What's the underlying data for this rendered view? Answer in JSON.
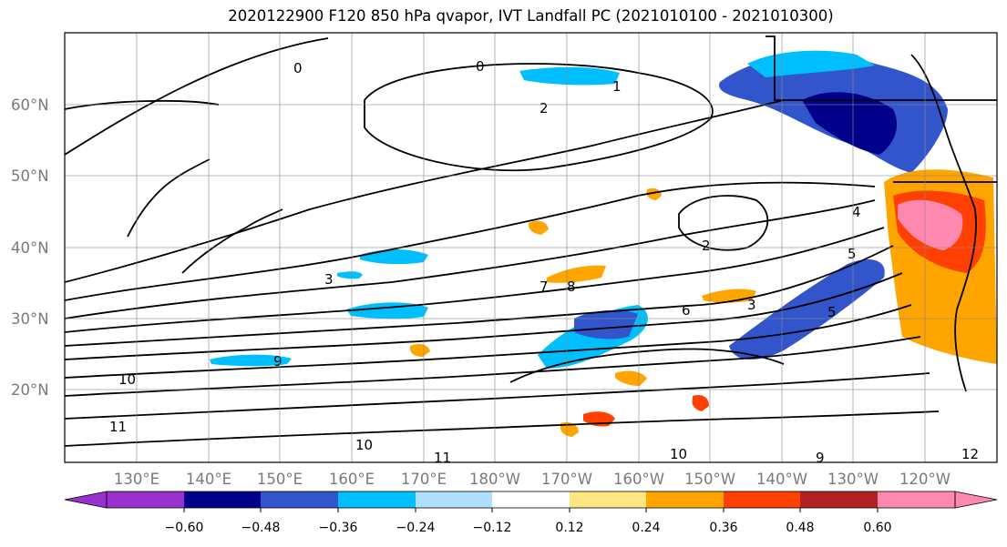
{
  "title": "2020122900 F120 850 hPa qvapor, IVT Landfall PC (2021010100 - 2021010300)",
  "map": {
    "lat_labels": [
      "60°N",
      "50°N",
      "40°N",
      "30°N",
      "20°N"
    ],
    "lon_labels": [
      "130°E",
      "140°E",
      "150°E",
      "160°E",
      "170°E",
      "180°W",
      "170°W",
      "160°W",
      "150°W",
      "140°W",
      "130°W",
      "120°W"
    ],
    "contour_labels": [
      "0",
      "0",
      "1",
      "2",
      "2",
      "3",
      "3",
      "4",
      "5",
      "5",
      "6",
      "7",
      "8",
      "9",
      "9",
      "10",
      "10",
      "10",
      "11",
      "11",
      "12"
    ]
  },
  "colorbar": {
    "ticks": [
      "−0.60",
      "−0.48",
      "−0.36",
      "−0.24",
      "−0.12",
      "0.12",
      "0.24",
      "0.36",
      "0.48",
      "0.60"
    ],
    "colors": [
      "#9932cc",
      "#00008b",
      "#3355cc",
      "#00bfff",
      "#b0e0ff",
      "#ffffff",
      "#ffe680",
      "#ffa500",
      "#ff4000",
      "#b22222",
      "#ff88b0"
    ]
  }
}
